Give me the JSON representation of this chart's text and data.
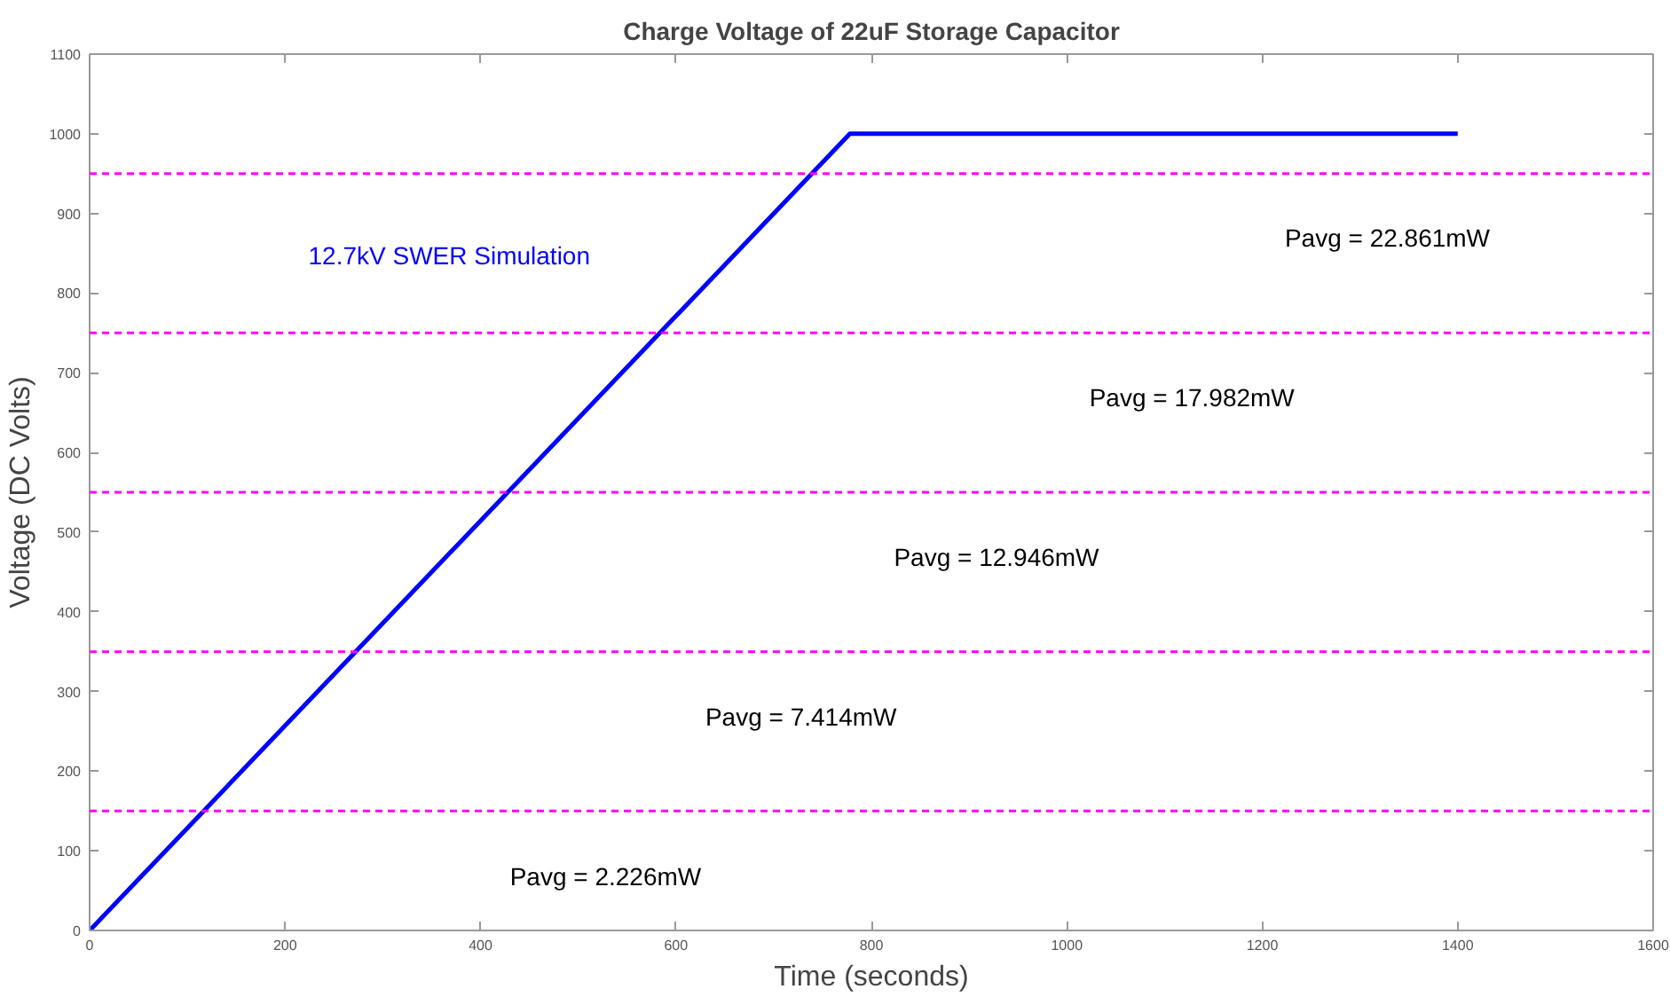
{
  "chart_data": {
    "type": "line",
    "title": "Charge Voltage of 22uF Storage Capacitor",
    "xlabel": "Time (seconds)",
    "ylabel": "Voltage (DC Volts)",
    "x": [
      0,
      778,
      1400
    ],
    "series": [
      {
        "color": "#0000ff",
        "values": [
          0,
          1000,
          1000
        ]
      }
    ],
    "xlim": [
      0,
      1600
    ],
    "ylim": [
      0,
      1100
    ],
    "xticks": [
      0,
      200,
      400,
      600,
      800,
      1000,
      1200,
      1400,
      1600
    ],
    "yticks": [
      0,
      100,
      200,
      300,
      400,
      500,
      600,
      700,
      800,
      900,
      1000,
      1100
    ],
    "grid": false,
    "marker": "none",
    "line_style": "solid",
    "ref_lines": [
      {
        "axis": "y",
        "value": 150,
        "color": "#ff00ff",
        "line_style": "dashed"
      },
      {
        "axis": "y",
        "value": 350,
        "color": "#ff00ff",
        "line_style": "dashed"
      },
      {
        "axis": "y",
        "value": 550,
        "color": "#ff00ff",
        "line_style": "dashed"
      },
      {
        "axis": "y",
        "value": 750,
        "color": "#ff00ff",
        "line_style": "dashed"
      },
      {
        "axis": "y",
        "value": 950,
        "color": "#ff00ff",
        "line_style": "dashed"
      }
    ],
    "annotations": [
      "12.7kV SWER Simulation",
      "Pavg = 22.861mW",
      "Pavg = 17.982mW",
      "Pavg = 12.946mW",
      "Pavg = 7.414mW",
      "Pavg = 2.226mW"
    ]
  }
}
